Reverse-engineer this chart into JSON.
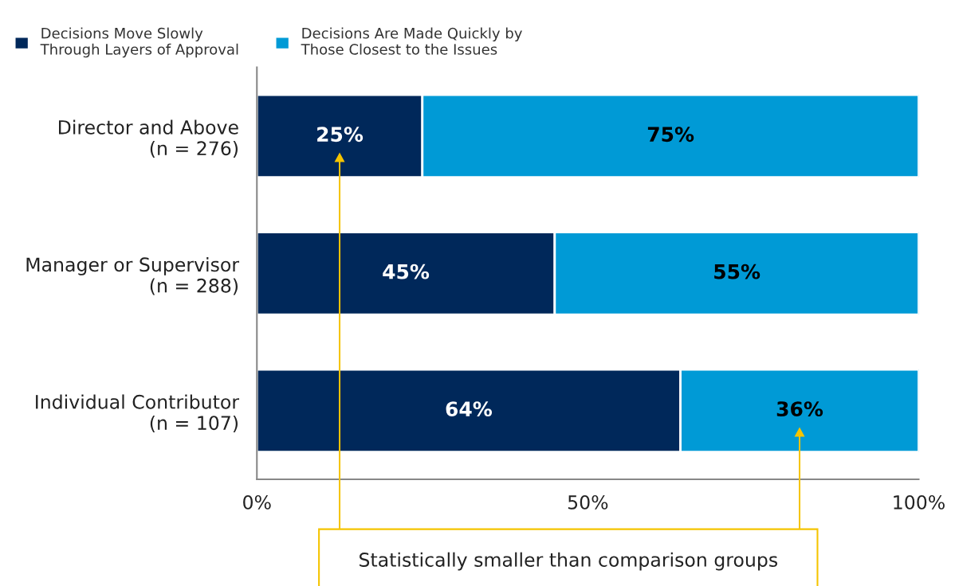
{
  "chart_data": {
    "type": "bar",
    "orientation": "horizontal",
    "stacked": true,
    "categories": [
      "Director and Above\n(n = 276)",
      "Manager or Supervisor\n(n = 288)",
      "Individual Contributor\n(n = 107)"
    ],
    "series": [
      {
        "name": "Decisions Move Slowly\nThrough Layers of Approval",
        "color": "#00285a",
        "values": [
          25,
          45,
          64
        ],
        "value_labels": [
          "25%",
          "45%",
          "64%"
        ]
      },
      {
        "name": "Decisions Are Made Quickly by\nThose Closest to the Issues",
        "color": "#009ad6",
        "values": [
          75,
          55,
          36
        ],
        "value_labels": [
          "75%",
          "55%",
          "36%"
        ]
      }
    ],
    "xlim": [
      0,
      100
    ],
    "xticks": [
      {
        "value": 0,
        "label": "0%"
      },
      {
        "value": 50,
        "label": "50%"
      },
      {
        "value": 100,
        "label": "100%"
      }
    ],
    "annotations": [
      "Statistically smaller than comparison groups"
    ],
    "legend": "top left",
    "grid": false
  }
}
